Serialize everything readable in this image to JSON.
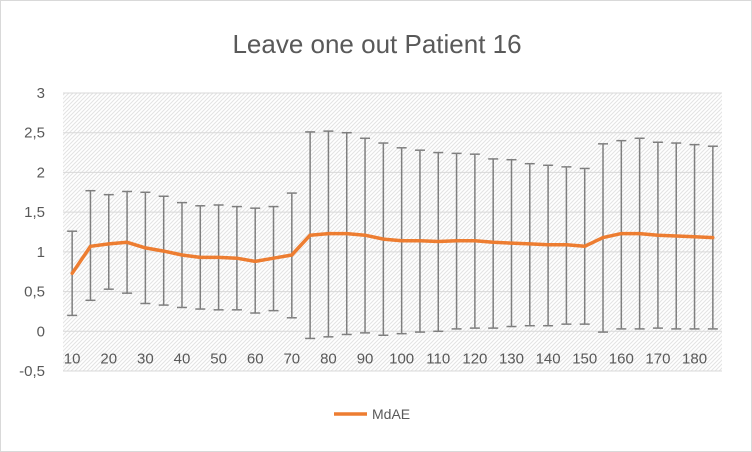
{
  "chart_data": {
    "type": "line",
    "title": "Leave one out Patient  16",
    "xlabel": "",
    "ylabel": "",
    "ylim": [
      -0.5,
      3
    ],
    "y_ticks": [
      "3",
      "2,5",
      "2",
      "1,5",
      "1",
      "0,5",
      "0",
      "-0,5"
    ],
    "x_tick_labels": [
      "10",
      "20",
      "30",
      "40",
      "50",
      "60",
      "70",
      "80",
      "90",
      "100",
      "110",
      "120",
      "130",
      "140",
      "150",
      "160",
      "170",
      "180"
    ],
    "x": [
      10,
      15,
      20,
      25,
      30,
      35,
      40,
      45,
      50,
      55,
      60,
      65,
      70,
      75,
      80,
      85,
      90,
      95,
      100,
      105,
      110,
      115,
      120,
      125,
      130,
      135,
      140,
      145,
      150,
      155,
      160,
      165,
      170,
      175,
      180,
      185
    ],
    "series": [
      {
        "name": "MdAE",
        "color": "#ED7D31",
        "values": [
          0.73,
          1.07,
          1.1,
          1.12,
          1.05,
          1.01,
          0.96,
          0.93,
          0.93,
          0.92,
          0.88,
          0.92,
          0.96,
          1.21,
          1.23,
          1.23,
          1.21,
          1.16,
          1.14,
          1.14,
          1.13,
          1.14,
          1.14,
          1.12,
          1.11,
          1.1,
          1.09,
          1.09,
          1.07,
          1.18,
          1.23,
          1.23,
          1.21,
          1.2,
          1.19,
          1.18
        ],
        "error_upper": [
          1.26,
          1.77,
          1.72,
          1.76,
          1.75,
          1.7,
          1.62,
          1.58,
          1.59,
          1.57,
          1.55,
          1.57,
          1.74,
          2.51,
          2.52,
          2.5,
          2.43,
          2.37,
          2.31,
          2.28,
          2.25,
          2.24,
          2.23,
          2.17,
          2.16,
          2.11,
          2.09,
          2.07,
          2.05,
          2.36,
          2.4,
          2.43,
          2.38,
          2.37,
          2.35,
          2.33
        ],
        "error_lower": [
          0.2,
          0.39,
          0.53,
          0.48,
          0.35,
          0.33,
          0.3,
          0.28,
          0.27,
          0.27,
          0.23,
          0.26,
          0.17,
          -0.09,
          -0.07,
          -0.04,
          -0.02,
          -0.05,
          -0.03,
          -0.01,
          0.0,
          0.03,
          0.04,
          0.04,
          0.06,
          0.07,
          0.07,
          0.09,
          0.09,
          -0.01,
          0.03,
          0.03,
          0.04,
          0.03,
          0.03,
          0.03
        ],
        "error_bar_color": "#7F7F7F"
      }
    ],
    "grid": true,
    "legend_position": "bottom"
  }
}
